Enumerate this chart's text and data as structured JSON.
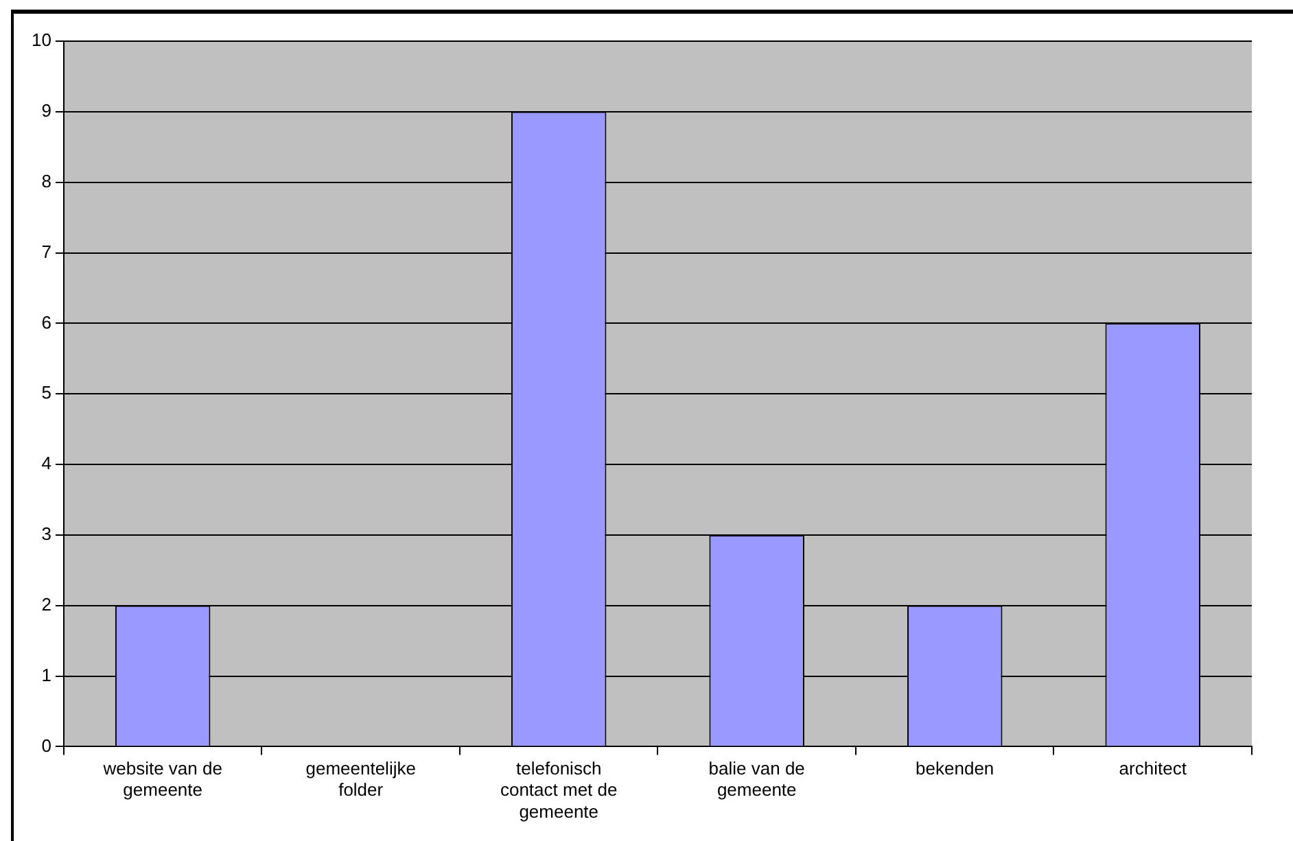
{
  "chart_data": {
    "type": "bar",
    "categories": [
      "website van de gemeente",
      "gemeentelijke folder",
      "telefonisch contact met de gemeente",
      "balie van de gemeente",
      "bekenden",
      "architect"
    ],
    "values": [
      2,
      0,
      9,
      3,
      2,
      6
    ],
    "color": "#9999ff",
    "ylim": [
      0,
      10
    ],
    "yticks": [
      0,
      1,
      2,
      3,
      4,
      5,
      6,
      7,
      8,
      9,
      10
    ],
    "grid": "y",
    "legend": false
  }
}
